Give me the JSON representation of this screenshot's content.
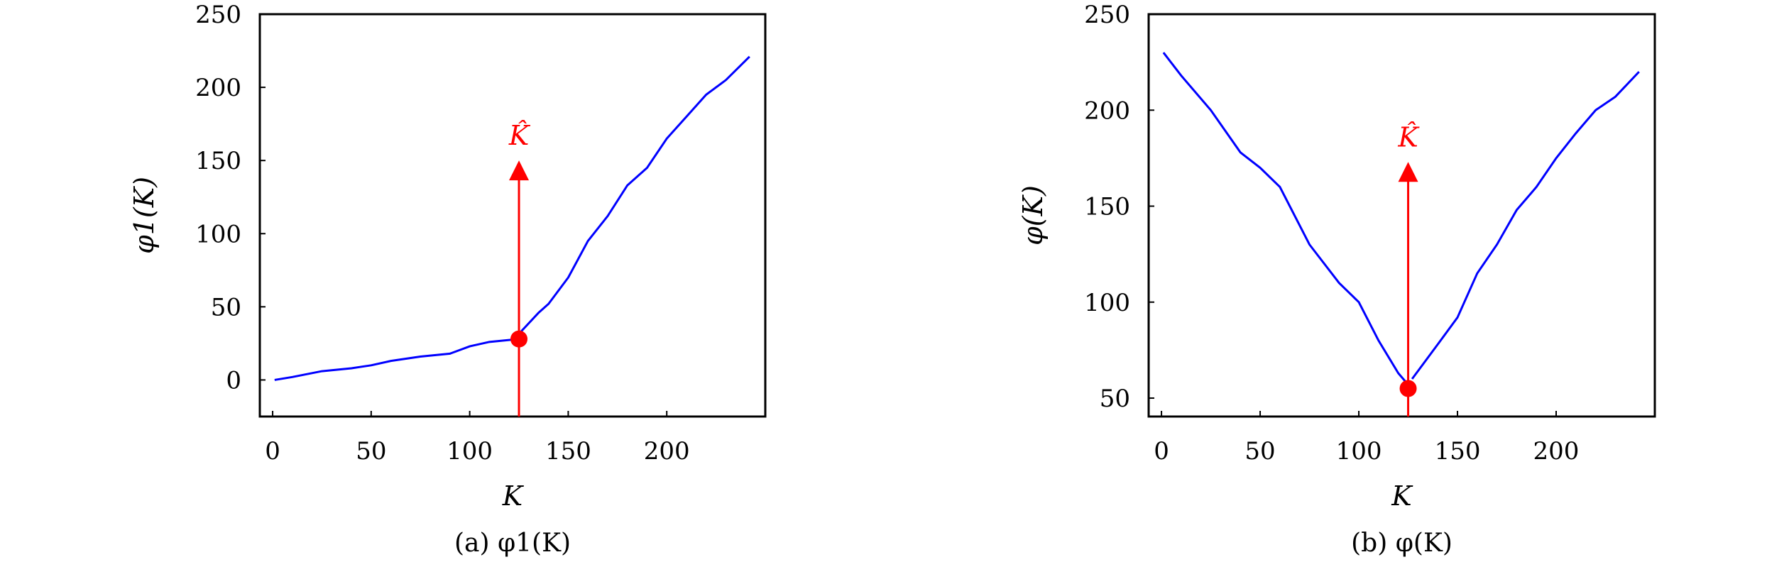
{
  "chart_data": [
    {
      "type": "line",
      "caption": "(a) φ1(K)",
      "xlabel": "K",
      "ylabel": "φ1(K)",
      "xlim": [
        -6.5,
        250
      ],
      "ylim": [
        -25,
        250
      ],
      "xticks": [
        0,
        50,
        100,
        150,
        200
      ],
      "yticks": [
        0,
        50,
        100,
        150,
        200,
        250
      ],
      "grid": false,
      "line_color": "#0000ff",
      "marker_color": "#ff0000",
      "series": [
        {
          "segments": [
            {
              "x": [
                1,
                10,
                25,
                40,
                50,
                60,
                75,
                90,
                100,
                110,
                125
              ],
              "y": [
                0,
                2,
                6,
                8,
                10,
                13,
                16,
                18,
                23,
                26,
                28
              ]
            },
            {
              "x": [
                126,
                135,
                140,
                150,
                160,
                170,
                180,
                190,
                200,
                210,
                220,
                230,
                242
              ],
              "y": [
                33,
                46,
                52,
                70,
                95,
                112,
                133,
                145,
                165,
                180,
                195,
                205,
                221
              ]
            }
          ]
        }
      ],
      "marker": {
        "x": 125,
        "y": 28
      },
      "annotation": {
        "label": "K̂",
        "x": 125,
        "arrow_top": 150
      }
    },
    {
      "type": "line",
      "caption": "(b) φ(K)",
      "xlabel": "K",
      "ylabel": "φ(K)",
      "xlim": [
        -6.5,
        250
      ],
      "ylim": [
        40.4,
        250
      ],
      "xticks": [
        0,
        50,
        100,
        150,
        200
      ],
      "yticks": [
        50,
        100,
        150,
        200,
        250
      ],
      "grid": false,
      "line_color": "#0000ff",
      "marker_color": "#ff0000",
      "series": [
        {
          "segments": [
            {
              "x": [
                1,
                10,
                25,
                40,
                50,
                60,
                75,
                90,
                100,
                110,
                120,
                125
              ],
              "y": [
                230,
                218,
                200,
                178,
                170,
                160,
                130,
                110,
                100,
                80,
                63,
                57
              ]
            },
            {
              "x": [
                127,
                140,
                150,
                160,
                170,
                180,
                190,
                200,
                210,
                220,
                230,
                242
              ],
              "y": [
                60,
                78,
                92,
                115,
                130,
                148,
                160,
                175,
                188,
                200,
                207,
                220
              ]
            }
          ]
        }
      ],
      "marker": {
        "x": 125,
        "y": 55
      },
      "annotation": {
        "label": "K̂",
        "x": 125,
        "arrow_top": 173
      }
    }
  ]
}
